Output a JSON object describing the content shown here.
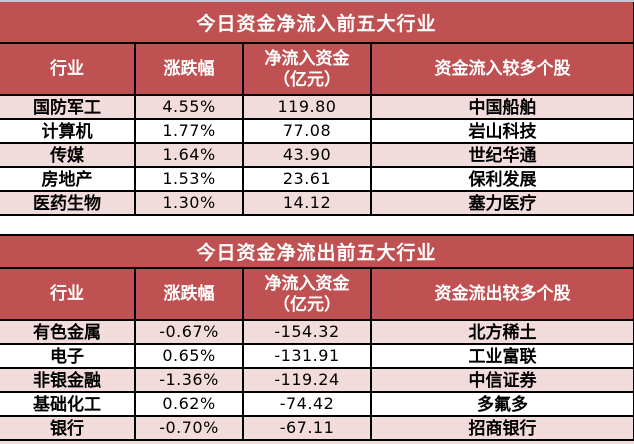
{
  "colors": {
    "header_red": "#c05152",
    "row_pink": "#f2dbdb",
    "row_white": "#ffffff",
    "border": "#000000",
    "header_text": "#ffffff",
    "body_text": "#000000",
    "top_edge_strip": "#c9c7d6"
  },
  "chart_data": [
    {
      "type": "table",
      "title": "今日资金净流入前五大行业",
      "columns": [
        "行业",
        "涨跌幅",
        "净流入资金\n（亿元）",
        "资金流入较多个股"
      ],
      "rows": [
        [
          "国防军工",
          "4.55%",
          "119.80",
          "中国船舶"
        ],
        [
          "计算机",
          "1.77%",
          "77.08",
          "岩山科技"
        ],
        [
          "传媒",
          "1.64%",
          "43.90",
          "世纪华通"
        ],
        [
          "房地产",
          "1.53%",
          "23.61",
          "保利发展"
        ],
        [
          "医药生物",
          "1.30%",
          "14.12",
          "塞力医疗"
        ]
      ]
    },
    {
      "type": "table",
      "title": "今日资金净流出前五大行业",
      "columns": [
        "行业",
        "涨跌幅",
        "净流入资金\n（亿元）",
        "资金流出较多个股"
      ],
      "rows": [
        [
          "有色金属",
          "-0.67%",
          "-154.32",
          "北方稀土"
        ],
        [
          "电子",
          "0.65%",
          "-131.91",
          "工业富联"
        ],
        [
          "非银金融",
          "-1.36%",
          "-119.24",
          "中信证券"
        ],
        [
          "基础化工",
          "0.62%",
          "-74.42",
          "多氟多"
        ],
        [
          "银行",
          "-0.70%",
          "-67.11",
          "招商银行"
        ]
      ]
    }
  ]
}
